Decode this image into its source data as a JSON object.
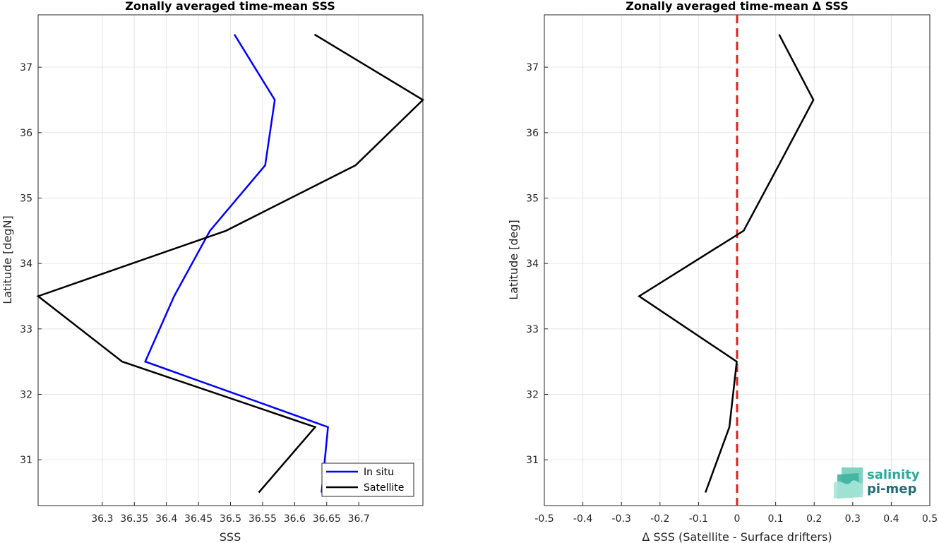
{
  "chart_data": [
    {
      "type": "line",
      "title": "Zonally averaged time-mean SSS",
      "xlabel": "SSS",
      "ylabel": "Latitude [degN]",
      "xlim": [
        36.2,
        36.8
      ],
      "ylim": [
        30.3,
        37.8
      ],
      "xticks": [
        "36.3",
        "36.35",
        "36.4",
        "36.45",
        "36.5",
        "36.55",
        "36.6",
        "36.65",
        "36.7"
      ],
      "yticks": [
        "31",
        "32",
        "33",
        "34",
        "35",
        "36",
        "37"
      ],
      "grid": true,
      "legend_position": "bottom-right",
      "series": [
        {
          "name": "In situ",
          "color": "#0000ff",
          "points": [
            [
              36.506,
              37.5
            ],
            [
              36.569,
              36.5
            ],
            [
              36.554,
              35.5
            ],
            [
              36.468,
              34.5
            ],
            [
              36.412,
              33.5
            ],
            [
              36.367,
              32.5
            ],
            [
              36.652,
              31.5
            ],
            [
              36.642,
              30.5
            ]
          ]
        },
        {
          "name": "Satellite",
          "color": "#000000",
          "points": [
            [
              36.631,
              37.5
            ],
            [
              36.8,
              36.5
            ],
            [
              36.695,
              35.5
            ],
            [
              36.493,
              34.5
            ],
            [
              36.2,
              33.5
            ],
            [
              36.331,
              32.5
            ],
            [
              36.632,
              31.5
            ],
            [
              36.544,
              30.5
            ]
          ]
        }
      ]
    },
    {
      "type": "line",
      "title": "Zonally averaged time-mean Δ SSS",
      "xlabel": "Δ SSS (Satellite - Surface drifters)",
      "ylabel": "Latitude [deg]",
      "xlim": [
        -0.5,
        0.5
      ],
      "ylim": [
        30.3,
        37.8
      ],
      "xticks": [
        "-0.5",
        "-0.4",
        "-0.3",
        "-0.2",
        "-0.1",
        "0",
        "0.1",
        "0.2",
        "0.3",
        "0.4",
        "0.5"
      ],
      "yticks": [
        "31",
        "32",
        "33",
        "34",
        "35",
        "36",
        "37"
      ],
      "grid": true,
      "reference_line": {
        "x": 0,
        "color": "#e02020",
        "style": "dashed"
      },
      "series": [
        {
          "color": "#000000",
          "points": [
            [
              0.109,
              37.5
            ],
            [
              0.198,
              36.5
            ],
            [
              0.108,
              35.5
            ],
            [
              0.017,
              34.5
            ],
            [
              -0.254,
              33.5
            ],
            [
              -0.001,
              32.5
            ],
            [
              -0.02,
              31.5
            ],
            [
              -0.082,
              30.5
            ]
          ]
        }
      ]
    }
  ],
  "logo": {
    "line1": "salinity",
    "line2": "pi-mep",
    "color1": "#2aa89a",
    "color2": "#1f6f78"
  }
}
